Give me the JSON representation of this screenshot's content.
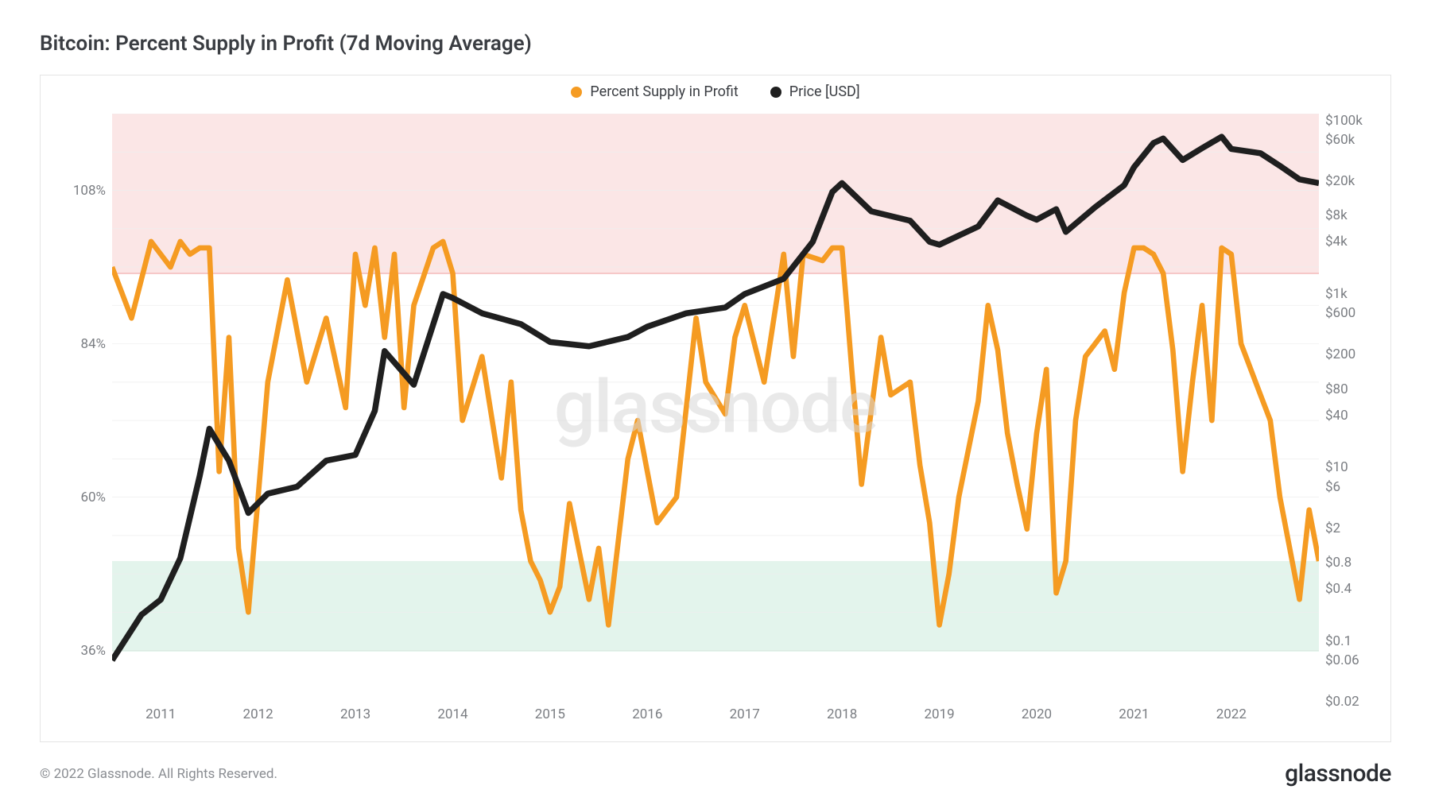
{
  "title": "Bitcoin: Percent Supply in Profit (7d Moving Average)",
  "copyright": "© 2022 Glassnode. All Rights Reserved.",
  "brand": "glassnode",
  "watermark": "glassnode",
  "chart": {
    "type": "line-dual-axis",
    "background_color": "#ffffff",
    "border_color": "#e5e5e5",
    "grid_color": "#eeeeee",
    "legend": [
      {
        "label": "Percent Supply in Profit",
        "color": "#f59b22"
      },
      {
        "label": "Price [USD]",
        "color": "#1f1f1f"
      }
    ],
    "bands": [
      {
        "y1_pct": 95,
        "y2_pct": 120,
        "fill": "#fbe6e6",
        "border": "#f0a8a8"
      },
      {
        "y1_pct": 36,
        "y2_pct": 50,
        "fill": "#e3f4ec",
        "border": "#8fd4b3"
      }
    ],
    "axis_x": {
      "min": 2010.5,
      "max": 2022.9,
      "ticks": [
        2011,
        2012,
        2013,
        2014,
        2015,
        2016,
        2017,
        2018,
        2019,
        2020,
        2021,
        2022
      ],
      "label_fontsize": 17,
      "label_color": "#7a7d82"
    },
    "axis_y_left": {
      "min": 28,
      "max": 120,
      "unit": "%",
      "ticks": [
        36,
        60,
        84,
        108
      ],
      "label_fontsize": 17,
      "label_color": "#7a7d82"
    },
    "axis_y_right": {
      "scale": "log",
      "min": 0.02,
      "max": 120000,
      "unit": "USD",
      "ticks": [
        0.02,
        0.06,
        0.1,
        0.4,
        0.8,
        2,
        6,
        10,
        40,
        80,
        200,
        600,
        "1k",
        "4k",
        "8k",
        "20k",
        "60k",
        "100k"
      ],
      "tick_values": [
        0.02,
        0.06,
        0.1,
        0.4,
        0.8,
        2,
        6,
        10,
        40,
        80,
        200,
        600,
        1000,
        4000,
        8000,
        20000,
        60000,
        100000
      ],
      "label_fontsize": 17,
      "label_color": "#7a7d82"
    },
    "series": [
      {
        "name": "percent_supply_in_profit",
        "axis": "left",
        "color": "#f59b22",
        "line_width": 2.2,
        "x": [
          2010.5,
          2010.7,
          2010.9,
          2011.0,
          2011.1,
          2011.2,
          2011.3,
          2011.4,
          2011.5,
          2011.6,
          2011.7,
          2011.8,
          2011.9,
          2012.0,
          2012.1,
          2012.3,
          2012.5,
          2012.7,
          2012.9,
          2013.0,
          2013.1,
          2013.2,
          2013.3,
          2013.4,
          2013.5,
          2013.6,
          2013.8,
          2013.9,
          2014.0,
          2014.1,
          2014.3,
          2014.5,
          2014.6,
          2014.7,
          2014.8,
          2014.9,
          2015.0,
          2015.1,
          2015.2,
          2015.4,
          2015.5,
          2015.6,
          2015.8,
          2015.9,
          2016.0,
          2016.1,
          2016.3,
          2016.5,
          2016.6,
          2016.8,
          2016.9,
          2017.0,
          2017.2,
          2017.4,
          2017.5,
          2017.6,
          2017.8,
          2017.9,
          2018.0,
          2018.1,
          2018.2,
          2018.4,
          2018.5,
          2018.7,
          2018.8,
          2018.9,
          2019.0,
          2019.1,
          2019.2,
          2019.4,
          2019.5,
          2019.6,
          2019.7,
          2019.8,
          2019.9,
          2020.0,
          2020.1,
          2020.2,
          2020.3,
          2020.4,
          2020.5,
          2020.7,
          2020.8,
          2020.9,
          2021.0,
          2021.1,
          2021.2,
          2021.3,
          2021.4,
          2021.5,
          2021.6,
          2021.7,
          2021.8,
          2021.9,
          2022.0,
          2022.1,
          2022.3,
          2022.4,
          2022.5,
          2022.6,
          2022.7,
          2022.8,
          2022.9
        ],
        "y": [
          96,
          88,
          100,
          98,
          96,
          100,
          98,
          99,
          99,
          64,
          85,
          52,
          42,
          60,
          78,
          94,
          78,
          88,
          74,
          98,
          90,
          99,
          85,
          98,
          74,
          90,
          99,
          100,
          95,
          72,
          82,
          63,
          78,
          58,
          50,
          47,
          42,
          46,
          59,
          44,
          52,
          40,
          66,
          72,
          64,
          56,
          60,
          88,
          78,
          73,
          85,
          90,
          78,
          98,
          82,
          98,
          97,
          99,
          99,
          80,
          62,
          85,
          76,
          78,
          65,
          56,
          40,
          48,
          60,
          75,
          90,
          83,
          70,
          62,
          55,
          70,
          80,
          45,
          50,
          72,
          82,
          86,
          80,
          92,
          99,
          99,
          98,
          95,
          83,
          64,
          78,
          90,
          72,
          99,
          98,
          84,
          76,
          72,
          60,
          52,
          44,
          58,
          50
        ]
      },
      {
        "name": "price_usd",
        "axis": "right",
        "color": "#1f1f1f",
        "line_width": 2.5,
        "x": [
          2010.5,
          2010.8,
          2011.0,
          2011.2,
          2011.4,
          2011.5,
          2011.7,
          2011.9,
          2012.1,
          2012.4,
          2012.7,
          2013.0,
          2013.2,
          2013.3,
          2013.6,
          2013.9,
          2014.0,
          2014.3,
          2014.7,
          2015.0,
          2015.4,
          2015.8,
          2016.0,
          2016.4,
          2016.8,
          2017.0,
          2017.4,
          2017.7,
          2017.9,
          2018.0,
          2018.3,
          2018.7,
          2018.9,
          2019.0,
          2019.4,
          2019.6,
          2019.9,
          2020.0,
          2020.2,
          2020.3,
          2020.6,
          2020.9,
          2021.0,
          2021.2,
          2021.3,
          2021.5,
          2021.7,
          2021.9,
          2022.0,
          2022.3,
          2022.5,
          2022.7,
          2022.9
        ],
        "y": [
          0.06,
          0.2,
          0.3,
          0.9,
          8,
          28,
          12,
          3,
          5,
          6,
          12,
          14,
          45,
          220,
          90,
          1000,
          900,
          600,
          450,
          280,
          250,
          320,
          420,
          600,
          700,
          1000,
          1500,
          4000,
          15000,
          19000,
          9000,
          7000,
          4000,
          3700,
          6000,
          12000,
          8000,
          7200,
          9500,
          5200,
          10000,
          18000,
          29000,
          55000,
          62000,
          35000,
          48000,
          65000,
          47000,
          42000,
          30000,
          21000,
          19000
        ]
      }
    ]
  }
}
